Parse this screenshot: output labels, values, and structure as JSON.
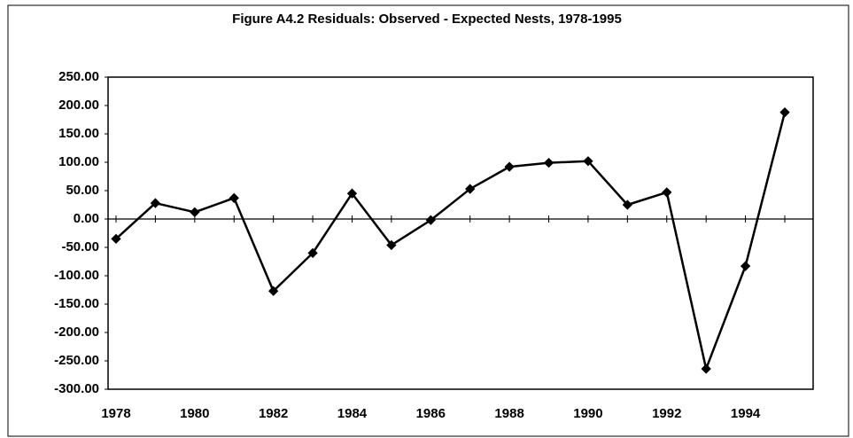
{
  "chart_data": {
    "type": "line",
    "title": "Figure A4.2  Residuals: Observed - Expected Nests, 1978-1995",
    "categories": [
      "1978",
      null,
      "1980",
      null,
      "1982",
      null,
      "1984",
      null,
      "1986",
      null,
      "1988",
      null,
      "1990",
      null,
      "1992",
      null,
      "1994",
      null
    ],
    "series": [
      {
        "name": "Residuals",
        "color": "#000000",
        "values": [
          -35,
          28,
          12,
          37,
          -127,
          -60,
          45,
          -46,
          -2,
          53,
          92,
          99,
          102,
          25,
          47,
          -264,
          -83,
          188
        ]
      }
    ],
    "ylim": [
      -300,
      250
    ],
    "yticks": [
      {
        "value": 250,
        "label": "250.00"
      },
      {
        "value": 200,
        "label": "200.00"
      },
      {
        "value": 150,
        "label": "150.00"
      },
      {
        "value": 100,
        "label": "100.00"
      },
      {
        "value": 50,
        "label": "50.00"
      },
      {
        "value": 0,
        "label": "0.00"
      },
      {
        "value": -50,
        "label": "-50.00"
      },
      {
        "value": -100,
        "label": "-100.00"
      },
      {
        "value": -150,
        "label": "-150.00"
      },
      {
        "value": -200,
        "label": "-200.00"
      },
      {
        "value": -250,
        "label": "-250.00"
      },
      {
        "value": -300,
        "label": "-300.00"
      }
    ],
    "grid": false
  }
}
